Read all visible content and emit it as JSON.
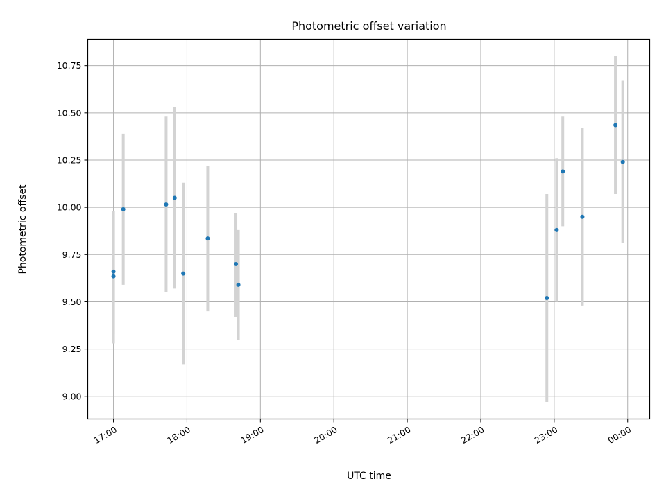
{
  "chart_data": {
    "type": "scatter",
    "title": "Photometric offset variation",
    "xlabel": "UTC time",
    "ylabel": "Photometric offset",
    "x_ticks": [
      "17:00",
      "18:00",
      "19:00",
      "20:00",
      "21:00",
      "22:00",
      "23:00",
      "00:00"
    ],
    "y_ticks": [
      "9.00",
      "9.25",
      "9.50",
      "9.75",
      "10.00",
      "10.25",
      "10.50",
      "10.75"
    ],
    "xlim": [
      "16:39",
      "00:18"
    ],
    "ylim": [
      8.88,
      10.89
    ],
    "grid": true,
    "error_bar_color": "#d3d3d3",
    "marker_color": "#1f77b4",
    "points": [
      {
        "x": "17:00",
        "y": 9.66,
        "ylow": 9.33,
        "yhigh": 9.98
      },
      {
        "x": "17:00",
        "y": 9.635,
        "ylow": 9.28,
        "yhigh": 9.98
      },
      {
        "x": "17:08",
        "y": 9.99,
        "ylow": 9.59,
        "yhigh": 10.39
      },
      {
        "x": "17:43",
        "y": 10.015,
        "ylow": 9.55,
        "yhigh": 10.48
      },
      {
        "x": "17:50",
        "y": 10.05,
        "ylow": 9.57,
        "yhigh": 10.53
      },
      {
        "x": "17:57",
        "y": 9.65,
        "ylow": 9.17,
        "yhigh": 10.13
      },
      {
        "x": "18:17",
        "y": 9.835,
        "ylow": 9.45,
        "yhigh": 10.22
      },
      {
        "x": "18:40",
        "y": 9.7,
        "ylow": 9.42,
        "yhigh": 9.97
      },
      {
        "x": "18:42",
        "y": 9.59,
        "ylow": 9.3,
        "yhigh": 9.88
      },
      {
        "x": "22:54",
        "y": 9.52,
        "ylow": 8.97,
        "yhigh": 10.07
      },
      {
        "x": "23:02",
        "y": 9.88,
        "ylow": 9.5,
        "yhigh": 10.26
      },
      {
        "x": "23:07",
        "y": 10.19,
        "ylow": 9.9,
        "yhigh": 10.48
      },
      {
        "x": "23:23",
        "y": 9.95,
        "ylow": 9.48,
        "yhigh": 10.42
      },
      {
        "x": "23:50",
        "y": 10.435,
        "ylow": 10.07,
        "yhigh": 10.8
      },
      {
        "x": "23:56",
        "y": 10.24,
        "ylow": 9.81,
        "yhigh": 10.67
      }
    ]
  }
}
